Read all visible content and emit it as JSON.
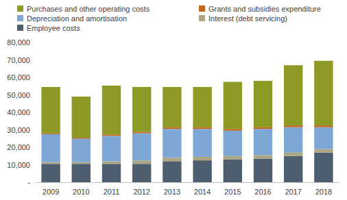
{
  "chart_data": {
    "type": "bar",
    "stacked": true,
    "grid": false,
    "legend": "top",
    "categories": [
      "2009",
      "2010",
      "2011",
      "2012",
      "2013",
      "2014",
      "2015",
      "2016",
      "2017",
      "2018"
    ],
    "series": [
      {
        "name": "Employee costs",
        "color": "#4f5e6e",
        "values": [
          10500,
          10500,
          10500,
          10500,
          12000,
          12500,
          13000,
          13500,
          15000,
          17000
        ]
      },
      {
        "name": "Interest (debt servicing)",
        "color": "#aca682",
        "values": [
          1000,
          1000,
          1500,
          2000,
          2000,
          2000,
          2000,
          2000,
          2000,
          2000
        ]
      },
      {
        "name": "Depreciation and amortisation",
        "color": "#7fa7d6",
        "values": [
          16000,
          13500,
          14500,
          15500,
          16500,
          16000,
          14500,
          15000,
          14500,
          12500
        ]
      },
      {
        "name": "Grants and subsidies expenditure",
        "color": "#c0651c",
        "values": [
          500,
          500,
          800,
          800,
          1000,
          1000,
          1000,
          1000,
          1000,
          1000
        ]
      },
      {
        "name": "Purchases and other operating costs",
        "color": "#8e9a26",
        "values": [
          26500,
          23500,
          28000,
          25700,
          23000,
          23000,
          27000,
          26500,
          34500,
          37000
        ]
      }
    ],
    "ylim": [
      0,
      80000
    ],
    "yticks": [
      {
        "value": 0,
        "label": "-"
      },
      {
        "value": 10000,
        "label": "10,000"
      },
      {
        "value": 20000,
        "label": "20,000"
      },
      {
        "value": 30000,
        "label": "30,000"
      },
      {
        "value": 40000,
        "label": "40,000"
      },
      {
        "value": 50000,
        "label": "50,000"
      },
      {
        "value": 60000,
        "label": "60,000"
      },
      {
        "value": 70000,
        "label": "70,000"
      },
      {
        "value": 80000,
        "label": "80,000"
      }
    ]
  }
}
